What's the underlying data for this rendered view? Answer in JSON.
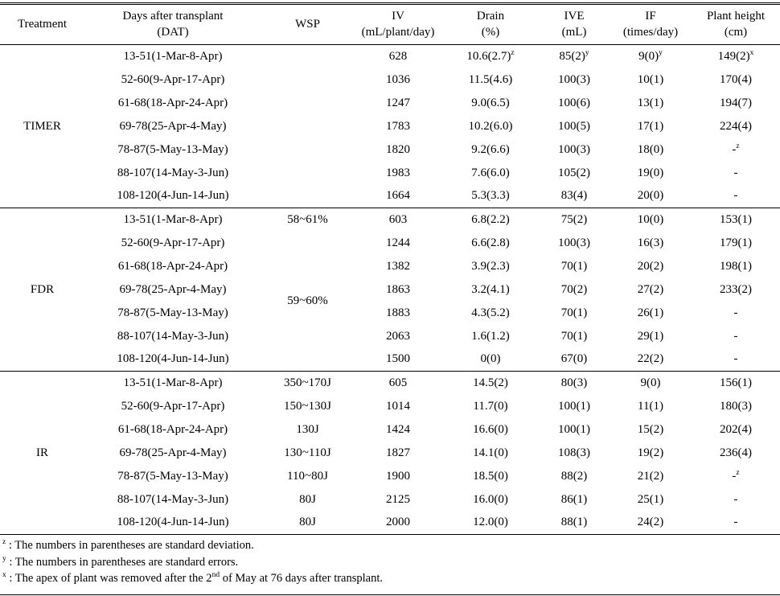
{
  "table": {
    "columns": [
      {
        "line1": "Treatment",
        "line2": ""
      },
      {
        "line1": "Days after transplant",
        "line2": "(DAT)"
      },
      {
        "line1": "WSP",
        "line2": ""
      },
      {
        "line1": "IV",
        "line2": "(mL/plant/day)"
      },
      {
        "line1": "Drain",
        "line2": "(%)"
      },
      {
        "line1": "IVE",
        "line2": "(mL)"
      },
      {
        "line1": "IF",
        "line2": "(times/day)"
      },
      {
        "line1": "Plant height",
        "line2": "(cm)"
      }
    ],
    "groups": [
      {
        "treatment": "TIMER",
        "rows": [
          {
            "dat": "13-51(1-Mar-8-Apr)",
            "wsp": "",
            "wsp_rowspan": 7,
            "iv": "628",
            "drain": "10.6(2.7)^{z}",
            "ive": "85(2)^{y}",
            "if": "9(0)^{y}",
            "height": "149(2)^{x}"
          },
          {
            "dat": "52-60(9-Apr-17-Apr)",
            "wsp": null,
            "iv": "1036",
            "drain": "11.5(4.6)",
            "ive": "100(3)",
            "if": "10(1)",
            "height": "170(4)"
          },
          {
            "dat": "61-68(18-Apr-24-Apr)",
            "wsp": null,
            "iv": "1247",
            "drain": "9.0(6.5)",
            "ive": "100(6)",
            "if": "13(1)",
            "height": "194(7)"
          },
          {
            "dat": "69-78(25-Apr-4-May)",
            "wsp": null,
            "iv": "1783",
            "drain": "10.2(6.0)",
            "ive": "100(5)",
            "if": "17(1)",
            "height": "224(4)"
          },
          {
            "dat": "78-87(5-May-13-May)",
            "wsp": null,
            "iv": "1820",
            "drain": "9.2(6.6)",
            "ive": "100(3)",
            "if": "18(0)",
            "height": "-^{z}"
          },
          {
            "dat": "88-107(14-May-3-Jun)",
            "wsp": null,
            "iv": "1983",
            "drain": "7.6(6.0)",
            "ive": "105(2)",
            "if": "19(0)",
            "height": "-"
          },
          {
            "dat": "108-120(4-Jun-14-Jun)",
            "wsp": null,
            "iv": "1664",
            "drain": "5.3(3.3)",
            "ive": "83(4)",
            "if": "20(0)",
            "height": "-"
          }
        ]
      },
      {
        "treatment": "FDR",
        "rows": [
          {
            "dat": "13-51(1-Mar-8-Apr)",
            "wsp": "58~61%",
            "iv": "603",
            "drain": "6.8(2.2)",
            "ive": "75(2)",
            "if": "10(0)",
            "height": "153(1)"
          },
          {
            "dat": "52-60(9-Apr-17-Apr)",
            "wsp": "59~60%",
            "wsp_rowspan": 6,
            "iv": "1244",
            "drain": "6.6(2.8)",
            "ive": "100(3)",
            "if": "16(3)",
            "height": "179(1)"
          },
          {
            "dat": "61-68(18-Apr-24-Apr)",
            "wsp": null,
            "iv": "1382",
            "drain": "3.9(2.3)",
            "ive": "70(1)",
            "if": "20(2)",
            "height": "198(1)"
          },
          {
            "dat": "69-78(25-Apr-4-May)",
            "wsp": null,
            "iv": "1863",
            "drain": "3.2(4.1)",
            "ive": "70(2)",
            "if": "27(2)",
            "height": "233(2)"
          },
          {
            "dat": "78-87(5-May-13-May)",
            "wsp": null,
            "iv": "1883",
            "drain": "4.3(5.2)",
            "ive": "70(1)",
            "if": "26(1)",
            "height": "-"
          },
          {
            "dat": "88-107(14-May-3-Jun)",
            "wsp": null,
            "iv": "2063",
            "drain": "1.6(1.2)",
            "ive": "70(1)",
            "if": "29(1)",
            "height": "-"
          },
          {
            "dat": "108-120(4-Jun-14-Jun)",
            "wsp": null,
            "iv": "1500",
            "drain": "0(0)",
            "ive": "67(0)",
            "if": "22(2)",
            "height": "-"
          }
        ]
      },
      {
        "treatment": "IR",
        "rows": [
          {
            "dat": "13-51(1-Mar-8-Apr)",
            "wsp": "350~170J",
            "iv": "605",
            "drain": "14.5(2)",
            "ive": "80(3)",
            "if": "9(0)",
            "height": "156(1)"
          },
          {
            "dat": "52-60(9-Apr-17-Apr)",
            "wsp": "150~130J",
            "iv": "1014",
            "drain": "11.7(0)",
            "ive": "100(1)",
            "if": "11(1)",
            "height": "180(3)"
          },
          {
            "dat": "61-68(18-Apr-24-Apr)",
            "wsp": "130J",
            "iv": "1424",
            "drain": "16.6(0)",
            "ive": "100(1)",
            "if": "15(2)",
            "height": "202(4)"
          },
          {
            "dat": "69-78(25-Apr-4-May)",
            "wsp": "130~110J",
            "iv": "1827",
            "drain": "14.1(0)",
            "ive": "108(3)",
            "if": "19(2)",
            "height": "236(4)"
          },
          {
            "dat": "78-87(5-May-13-May)",
            "wsp": "110~80J",
            "iv": "1900",
            "drain": "18.5(0)",
            "ive": "88(2)",
            "if": "21(2)",
            "height": "-^{z}"
          },
          {
            "dat": "88-107(14-May-3-Jun)",
            "wsp": "80J",
            "iv": "2125",
            "drain": "16.0(0)",
            "ive": "86(1)",
            "if": "25(1)",
            "height": "-"
          },
          {
            "dat": "108-120(4-Jun-14-Jun)",
            "wsp": "80J",
            "iv": "2000",
            "drain": "12.0(0)",
            "ive": "88(1)",
            "if": "24(2)",
            "height": "-"
          }
        ]
      }
    ],
    "footnotes": [
      "^{z} : The numbers in parentheses are standard deviation.",
      "^{y} : The numbers in parentheses are standard errors.",
      "^{x} : The apex of plant was removed after the 2^{nd} of May at 76 days after transplant."
    ]
  }
}
